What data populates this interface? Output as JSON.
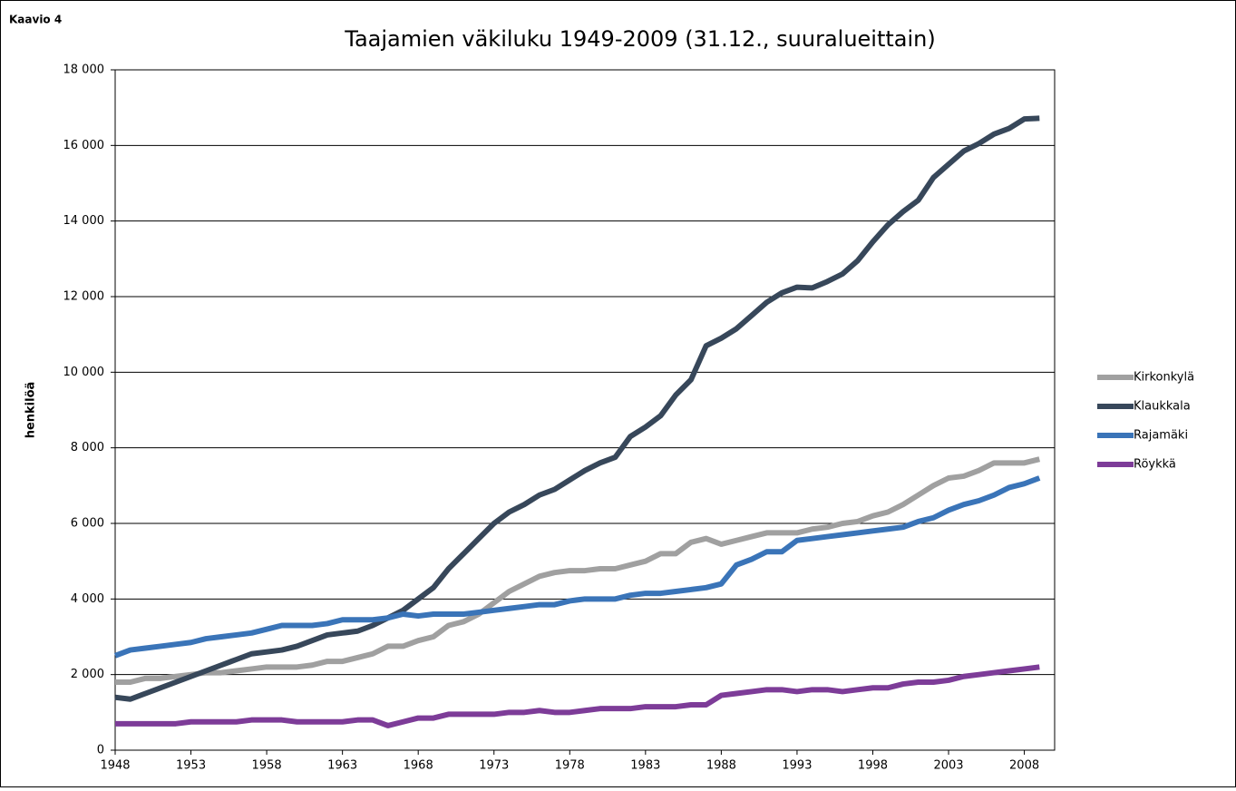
{
  "chart_data": {
    "type": "line",
    "label": "Kaavio 4",
    "title": "Taajamien väkiluku 1949-2009 (31.12., suuralueittain)",
    "y_label": "henkilöä",
    "x": [
      1948,
      1949,
      1950,
      1951,
      1952,
      1953,
      1954,
      1955,
      1956,
      1957,
      1958,
      1959,
      1960,
      1961,
      1962,
      1963,
      1964,
      1965,
      1966,
      1967,
      1968,
      1969,
      1970,
      1971,
      1972,
      1973,
      1974,
      1975,
      1976,
      1977,
      1978,
      1979,
      1980,
      1981,
      1982,
      1983,
      1984,
      1985,
      1986,
      1987,
      1988,
      1989,
      1990,
      1991,
      1992,
      1993,
      1994,
      1995,
      1996,
      1997,
      1998,
      1999,
      2000,
      2001,
      2002,
      2003,
      2004,
      2005,
      2006,
      2007,
      2008,
      2009
    ],
    "xlim": [
      1948,
      2010
    ],
    "xticks": [
      1948,
      1953,
      1958,
      1963,
      1968,
      1973,
      1978,
      1983,
      1988,
      1993,
      1998,
      2003,
      2008
    ],
    "ylim": [
      0,
      18000
    ],
    "yticks": [
      0,
      {
        "value": 2000,
        "label": "2 000"
      },
      {
        "value": 4000,
        "label": "4 000"
      },
      {
        "value": 6000,
        "label": "6 000"
      },
      {
        "value": 8000,
        "label": "8 000"
      },
      {
        "value": 10000,
        "label": "10 000"
      },
      {
        "value": 12000,
        "label": "12 000"
      },
      {
        "value": 14000,
        "label": "14 000"
      },
      {
        "value": 16000,
        "label": "16 000"
      },
      {
        "value": 18000,
        "label": "18 000"
      }
    ],
    "grid": true,
    "legend": "right",
    "series": [
      {
        "name": "Kirkonkylä",
        "color": "#a0a0a0",
        "values": [
          1800,
          1800,
          1900,
          1900,
          1950,
          2000,
          2050,
          2050,
          2100,
          2150,
          2200,
          2200,
          2200,
          2250,
          2350,
          2350,
          2450,
          2550,
          2750,
          2750,
          2900,
          3000,
          3300,
          3400,
          3600,
          3900,
          4200,
          4400,
          4600,
          4700,
          4750,
          4750,
          4800,
          4800,
          4900,
          5000,
          5200,
          5200,
          5500,
          5600,
          5450,
          5550,
          5650,
          5750,
          5750,
          5750,
          5850,
          5900,
          6000,
          6050,
          6200,
          6300,
          6500,
          6750,
          7000,
          7200,
          7250,
          7400,
          7600,
          7600,
          7600,
          7700
        ]
      },
      {
        "name": "Klaukkala",
        "color": "#37475a",
        "values": [
          1400,
          1350,
          1500,
          1650,
          1800,
          1950,
          2100,
          2250,
          2400,
          2550,
          2600,
          2650,
          2750,
          2900,
          3050,
          3100,
          3150,
          3300,
          3500,
          3700,
          4000,
          4300,
          4800,
          5200,
          5600,
          6000,
          6300,
          6500,
          6750,
          6900,
          7150,
          7400,
          7600,
          7750,
          8300,
          8550,
          8850,
          9400,
          9800,
          10700,
          10900,
          11150,
          11500,
          11850,
          12100,
          12250,
          12230,
          12400,
          12600,
          12950,
          13450,
          13900,
          14250,
          14550,
          15150,
          15500,
          15850,
          16050,
          16300,
          16450,
          16700,
          16720
        ]
      },
      {
        "name": "Rajamäki",
        "color": "#3a74b8",
        "values": [
          2500,
          2650,
          2700,
          2750,
          2800,
          2850,
          2950,
          3000,
          3050,
          3100,
          3200,
          3300,
          3300,
          3300,
          3350,
          3450,
          3450,
          3450,
          3500,
          3600,
          3550,
          3600,
          3600,
          3600,
          3650,
          3700,
          3750,
          3800,
          3850,
          3850,
          3950,
          4000,
          4000,
          4000,
          4100,
          4150,
          4150,
          4200,
          4250,
          4300,
          4400,
          4900,
          5050,
          5250,
          5250,
          5550,
          5600,
          5650,
          5700,
          5750,
          5800,
          5850,
          5900,
          6050,
          6150,
          6350,
          6500,
          6600,
          6750,
          6950,
          7050,
          7200
        ]
      },
      {
        "name": "Röykkä",
        "color": "#7d3c98",
        "values": [
          700,
          700,
          700,
          700,
          700,
          750,
          750,
          750,
          750,
          800,
          800,
          800,
          750,
          750,
          750,
          750,
          800,
          800,
          650,
          750,
          850,
          850,
          950,
          950,
          950,
          950,
          1000,
          1000,
          1050,
          1000,
          1000,
          1050,
          1100,
          1100,
          1100,
          1150,
          1150,
          1150,
          1200,
          1200,
          1450,
          1500,
          1550,
          1600,
          1600,
          1550,
          1600,
          1600,
          1550,
          1600,
          1650,
          1650,
          1750,
          1800,
          1800,
          1850,
          1950,
          2000,
          2050,
          2100,
          2150,
          2200
        ]
      }
    ]
  }
}
